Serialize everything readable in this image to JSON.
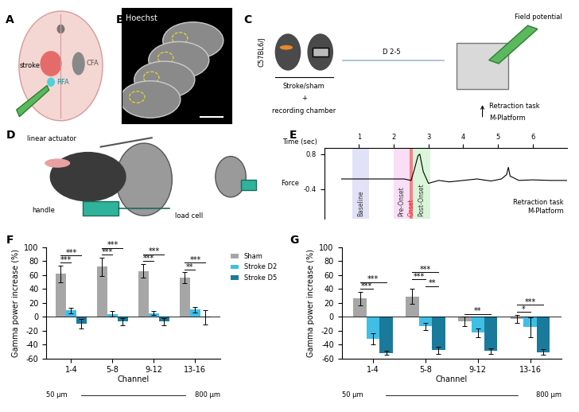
{
  "panel_labels": [
    "A",
    "B",
    "C",
    "D",
    "E",
    "F",
    "G"
  ],
  "panels": {
    "A": {
      "texts": [
        "stroke",
        "CFA",
        "RFA"
      ]
    },
    "B": {
      "title": "Hoechst"
    },
    "C": {
      "strain": "C57BL6/J",
      "groups": "Stroke/sham",
      "plus": "+",
      "chamber": "recording chamber",
      "days": "D 2-5",
      "recording": "Field potential",
      "task": "Retraction task",
      "platform": "M-Platform"
    },
    "D": {
      "labels": [
        "linear actuator",
        "handle",
        "load cell"
      ]
    }
  },
  "chart_data": [
    {
      "type": "line",
      "x_label": "Time (sec)",
      "y_label": "Force",
      "x": [
        0.5,
        1.0,
        1.5,
        2.0,
        2.3,
        2.5,
        2.6,
        2.7,
        2.75,
        2.85,
        3.0,
        3.3,
        3.6,
        4.0,
        4.4,
        4.8,
        5.1,
        5.25,
        5.3,
        5.35,
        5.6,
        6.0,
        6.5,
        7.0
      ],
      "values": [
        -0.05,
        -0.05,
        -0.05,
        -0.05,
        -0.05,
        -0.1,
        0.3,
        0.75,
        0.8,
        0.2,
        -0.2,
        -0.1,
        -0.15,
        -0.1,
        -0.05,
        -0.12,
        -0.05,
        0.1,
        0.35,
        0.05,
        -0.1,
        -0.08,
        -0.1,
        -0.1
      ],
      "color": "#000000",
      "xlim": [
        0,
        7
      ],
      "xticks": [
        1,
        2,
        3,
        4,
        5,
        6
      ],
      "ylim": [
        -1.4,
        1.0
      ],
      "yticks": [
        -0.4,
        0.8
      ],
      "regions": [
        {
          "name": "Baseline",
          "start": 0.8,
          "end": 1.3,
          "color": "#c9c9f2"
        },
        {
          "name": "Pre-Onset",
          "start": 2.0,
          "end": 2.45,
          "color": "#f5c4ee"
        },
        {
          "name": "Onset",
          "start": 2.45,
          "end": 2.55,
          "color": "#e8202a"
        },
        {
          "name": "Post-Onset",
          "start": 2.55,
          "end": 3.05,
          "color": "#bdeebd"
        }
      ],
      "annotations": [
        "Retraction task",
        "M-Platform"
      ]
    },
    {
      "type": "bar",
      "x_label": "Channel",
      "y_label": "Gamma power increase (%)",
      "categories": [
        "1-4",
        "5-8",
        "9-12",
        "13-16"
      ],
      "series": [
        {
          "name": "Sham",
          "color": "#a6a6a6",
          "values": [
            62,
            72,
            66,
            56
          ],
          "errors": [
            12,
            13,
            10,
            8
          ]
        },
        {
          "name": "Stroke D2",
          "color": "#3fbfe6",
          "values": [
            9,
            4,
            5,
            10
          ],
          "errors": [
            4,
            4,
            3,
            4
          ]
        },
        {
          "name": "Stroke D5",
          "color": "#1a7a9c",
          "values": [
            -10,
            -7,
            -7,
            -1
          ],
          "errors": [
            7,
            5,
            5,
            10
          ]
        }
      ],
      "ylim": [
        -60,
        100
      ],
      "yticks": [
        -60,
        -40,
        -20,
        0,
        20,
        40,
        60,
        80,
        100
      ],
      "legend": "upper right",
      "depth_labels": [
        "50 µm",
        "800 µm"
      ],
      "significance": [
        {
          "category": "1-4",
          "from": "Sham",
          "to": "Stroke D2",
          "label": "***"
        },
        {
          "category": "1-4",
          "from": "Sham",
          "to": "Stroke D5",
          "label": "***"
        },
        {
          "category": "5-8",
          "from": "Sham",
          "to": "Stroke D2",
          "label": "***"
        },
        {
          "category": "5-8",
          "from": "Sham",
          "to": "Stroke D5",
          "label": "***"
        },
        {
          "category": "9-12",
          "from": "Sham",
          "to": "Stroke D2",
          "label": "***"
        },
        {
          "category": "9-12",
          "from": "Sham",
          "to": "Stroke D5",
          "label": "***"
        },
        {
          "category": "13-16",
          "from": "Sham",
          "to": "Stroke D2",
          "label": "**"
        },
        {
          "category": "13-16",
          "from": "Sham",
          "to": "Stroke D5",
          "label": "***"
        }
      ]
    },
    {
      "type": "bar",
      "x_label": "Channel",
      "y_label": "Gamma power increase (%)",
      "categories": [
        "1-4",
        "5-8",
        "9-12",
        "13-16"
      ],
      "series": [
        {
          "name": "Sham",
          "color": "#a6a6a6",
          "values": [
            26,
            29,
            -7,
            -3
          ],
          "errors": [
            10,
            11,
            7,
            6
          ]
        },
        {
          "name": "Stroke D2",
          "color": "#3fbfe6",
          "values": [
            -32,
            -14,
            -23,
            -15
          ],
          "errors": [
            8,
            5,
            6,
            14
          ]
        },
        {
          "name": "Stroke D5",
          "color": "#1a7a9c",
          "values": [
            -52,
            -48,
            -49,
            -51
          ],
          "errors": [
            3,
            5,
            4,
            4
          ]
        }
      ],
      "ylim": [
        -60,
        100
      ],
      "yticks": [
        -60,
        -40,
        -20,
        0,
        20,
        40,
        60,
        80,
        100
      ],
      "depth_labels": [
        "50 µm",
        "800 µm"
      ],
      "significance": [
        {
          "category": "1-4",
          "from": "Sham",
          "to": "Stroke D2",
          "label": "***"
        },
        {
          "category": "1-4",
          "from": "Sham",
          "to": "Stroke D5",
          "label": "***"
        },
        {
          "category": "5-8",
          "from": "Stroke D2",
          "to": "Stroke D5",
          "label": "**"
        },
        {
          "category": "5-8",
          "from": "Sham",
          "to": "Stroke D2",
          "label": "***"
        },
        {
          "category": "5-8",
          "from": "Sham",
          "to": "Stroke D5",
          "label": "***"
        },
        {
          "category": "9-12",
          "from": "Sham",
          "to": "Stroke D5",
          "label": "**"
        },
        {
          "category": "13-16",
          "from": "Sham",
          "to": "Stroke D2",
          "label": "*"
        },
        {
          "category": "13-16",
          "from": "Sham",
          "to": "Stroke D5",
          "label": "***"
        }
      ]
    }
  ]
}
